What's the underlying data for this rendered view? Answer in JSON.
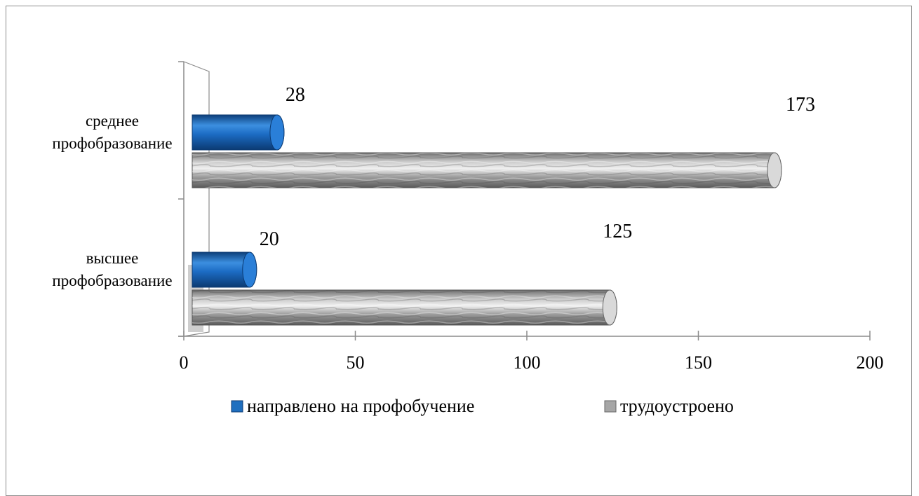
{
  "chart_data": {
    "type": "bar",
    "orientation": "horizontal",
    "categories": [
      [
        "среднее",
        "профобразование"
      ],
      [
        "высшее",
        "профобразование"
      ]
    ],
    "series": [
      {
        "name": "направлено на профобучение",
        "values": [
          28,
          20
        ],
        "color": "#1f6fbf"
      },
      {
        "name": "трудоустроено",
        "values": [
          173,
          125
        ],
        "color": "#a6a6a6"
      }
    ],
    "xlim": [
      0,
      200
    ],
    "x_ticks": [
      0,
      50,
      100,
      150,
      200
    ],
    "title": "",
    "xlabel": "",
    "ylabel": "",
    "legend": "bottom",
    "grid": false
  }
}
